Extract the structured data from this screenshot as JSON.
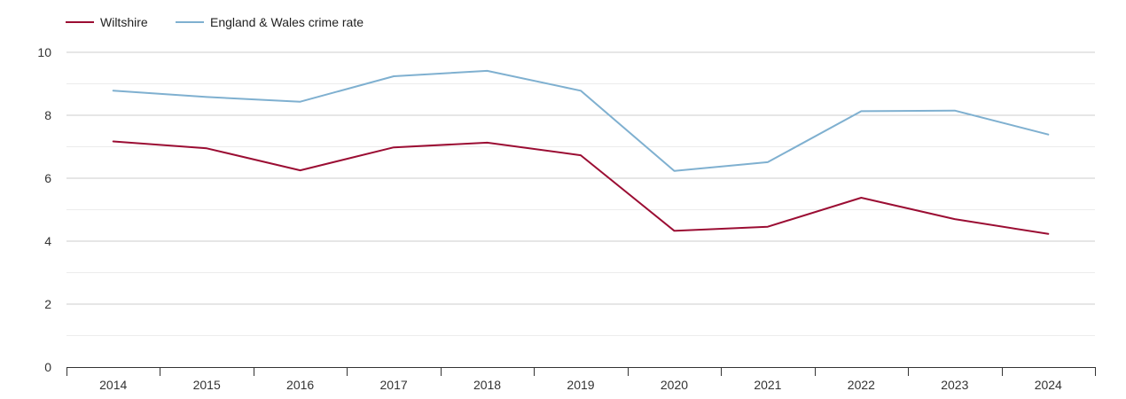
{
  "chart_data": {
    "type": "line",
    "title": "",
    "xlabel": "",
    "ylabel": "",
    "categories": [
      "2014",
      "2015",
      "2016",
      "2017",
      "2018",
      "2019",
      "2020",
      "2021",
      "2022",
      "2023",
      "2024"
    ],
    "ylim": [
      0,
      10
    ],
    "yticks": [
      "0",
      "2",
      "4",
      "6",
      "8",
      "10"
    ],
    "grid": true,
    "legend_position": "top-left",
    "series": [
      {
        "name": "Wiltshire",
        "color": "#9b0d33",
        "values": [
          7.17,
          6.95,
          6.25,
          6.98,
          7.13,
          6.73,
          4.33,
          4.46,
          5.38,
          4.7,
          4.23
        ]
      },
      {
        "name": "England & Wales crime rate",
        "color": "#7fb0d0",
        "values": [
          8.78,
          8.58,
          8.43,
          9.24,
          9.41,
          8.78,
          6.23,
          6.51,
          8.13,
          8.15,
          7.39
        ]
      }
    ]
  }
}
